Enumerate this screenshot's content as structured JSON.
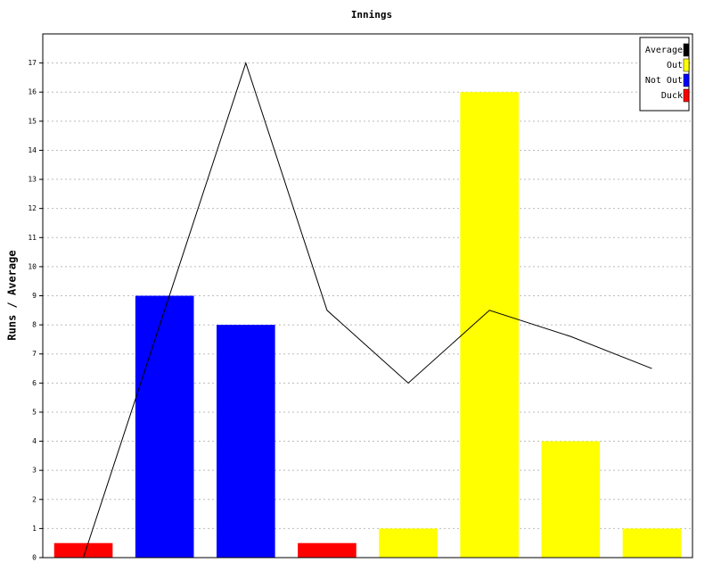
{
  "chart_data": {
    "type": "bar",
    "title": "Innings",
    "y_label": "Runs / Average",
    "categories": [
      null,
      null,
      null,
      null,
      null,
      null,
      null,
      null
    ],
    "ylim": [
      0,
      18
    ],
    "yticks": [
      0,
      1,
      2,
      3,
      4,
      5,
      6,
      7,
      8,
      9,
      10,
      11,
      12,
      13,
      14,
      15,
      16,
      17
    ],
    "grid": true,
    "legend": "upper right",
    "series": [
      {
        "name": "Average",
        "type": "line",
        "color": "#000000",
        "values": [
          0,
          8.5,
          17,
          8.5,
          6,
          8.5,
          7.6,
          6.5
        ]
      },
      {
        "name": "Out",
        "type": "bar",
        "color": "#ffff00",
        "values": [
          null,
          null,
          null,
          null,
          1,
          16,
          4,
          1
        ]
      },
      {
        "name": "Not Out",
        "type": "bar",
        "color": "#0000ff",
        "values": [
          null,
          9,
          8,
          null,
          null,
          null,
          null,
          null
        ]
      },
      {
        "name": "Duck",
        "type": "bar",
        "color": "#ff0000",
        "values": [
          0.5,
          null,
          null,
          0.5,
          null,
          null,
          null,
          null
        ]
      }
    ]
  }
}
